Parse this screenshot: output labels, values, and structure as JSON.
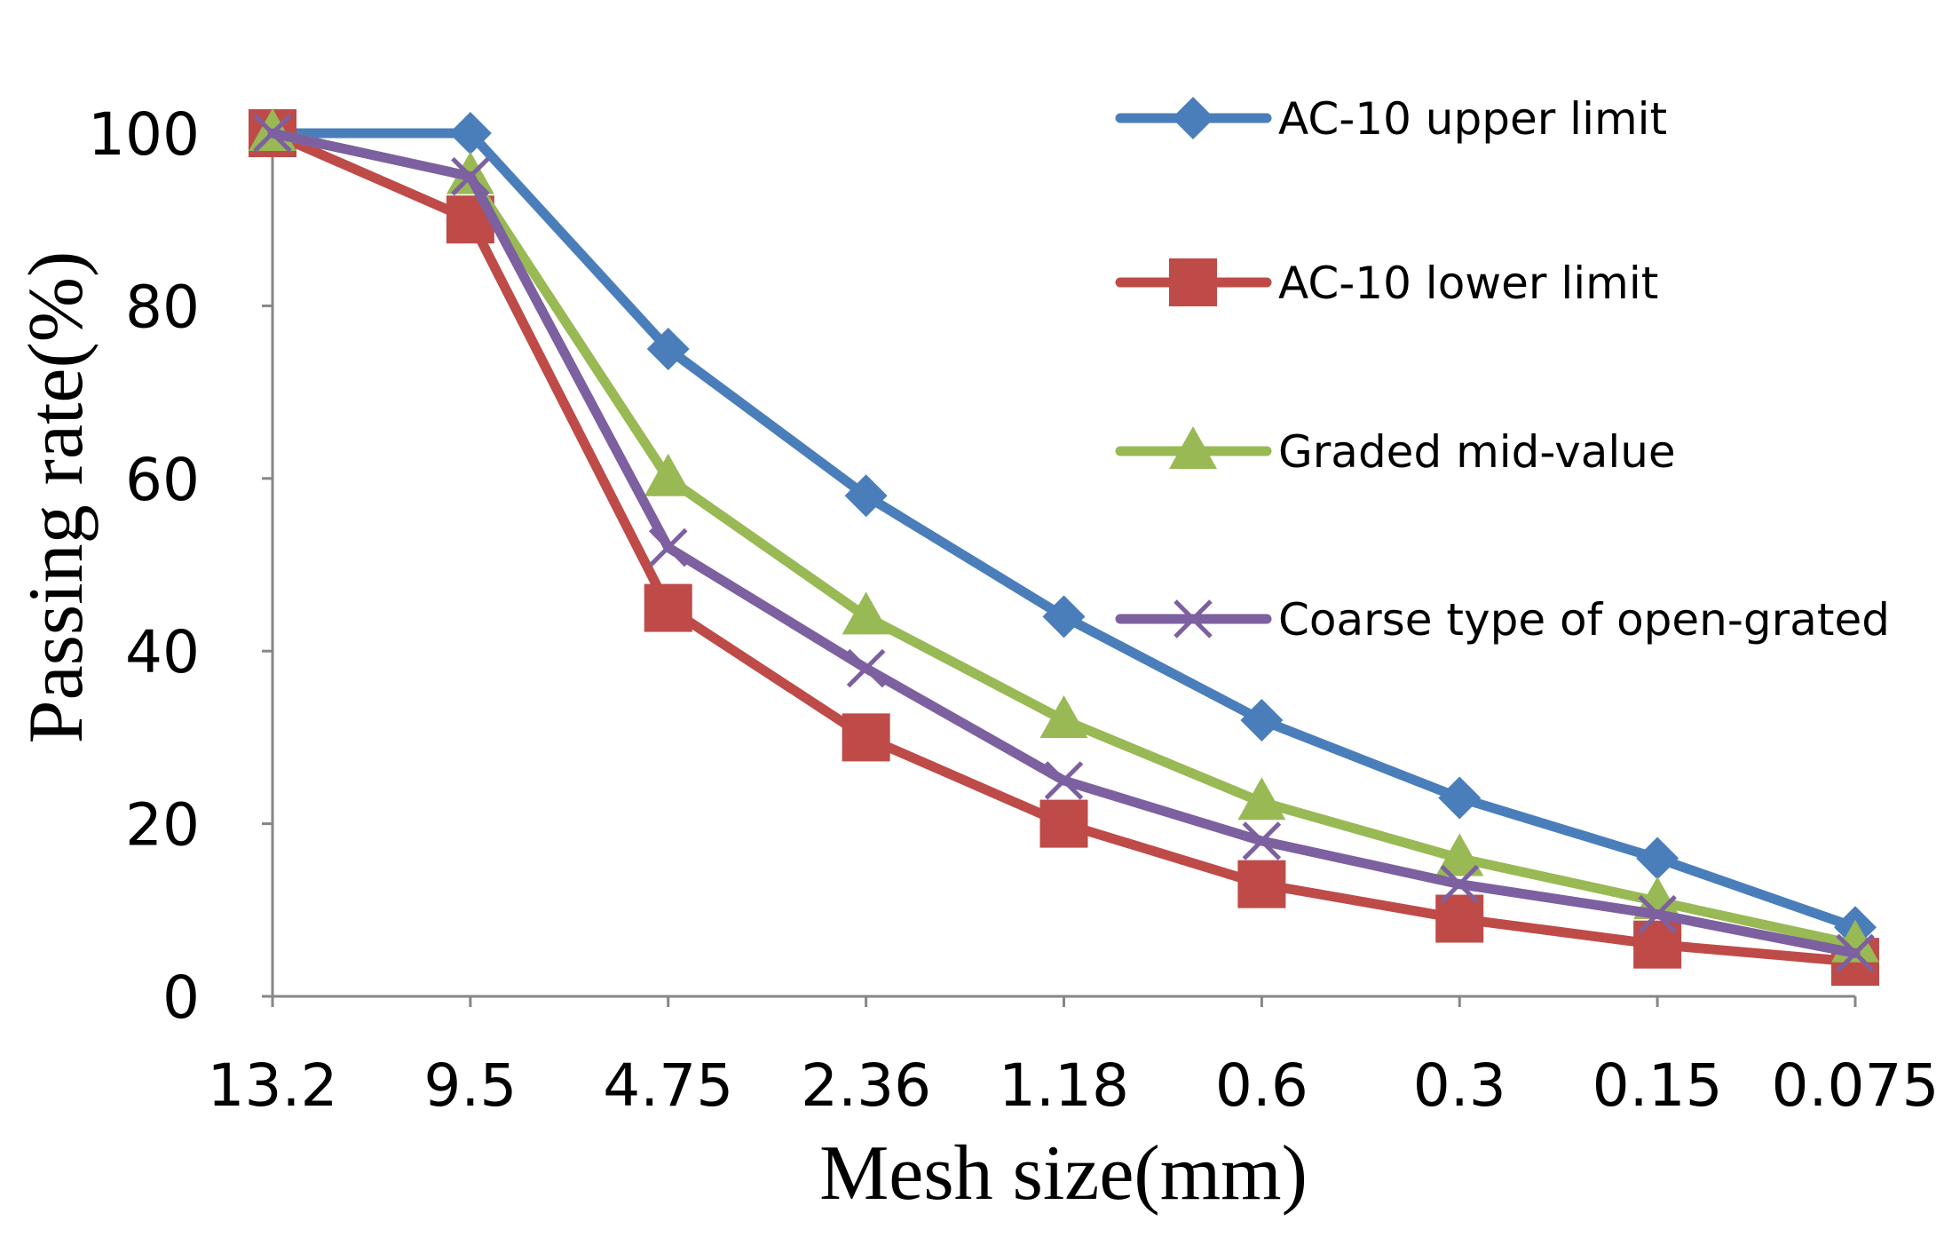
{
  "chart_data": {
    "type": "line",
    "title": "",
    "xlabel": "Mesh size(mm)",
    "ylabel": "Passing rate(%)",
    "categories": [
      "13.2",
      "9.5",
      "4.75",
      "2.36",
      "1.18",
      "0.6",
      "0.3",
      "0.15",
      "0.075"
    ],
    "ylim": [
      0,
      100
    ],
    "yticks": [
      0,
      20,
      40,
      60,
      80,
      100
    ],
    "grid": false,
    "legend_position": "top-right",
    "series": [
      {
        "name": "AC-10 upper limit",
        "marker": "diamond",
        "color": "#4a7ebb",
        "values": [
          100,
          100,
          75,
          58,
          44,
          32,
          23,
          16,
          8
        ]
      },
      {
        "name": "AC-10 lower limit",
        "marker": "square",
        "color": "#be4b48",
        "values": [
          100,
          90,
          45,
          30,
          20,
          13,
          9,
          6,
          4
        ]
      },
      {
        "name": "Graded mid-value",
        "marker": "triangle",
        "color": "#98b954",
        "values": [
          100,
          95,
          60,
          44,
          32,
          22.5,
          16,
          11,
          6
        ]
      },
      {
        "name": "Coarse type of open-grated",
        "marker": "x",
        "color": "#7d60a0",
        "values": [
          100,
          95,
          52,
          38,
          25,
          18,
          13,
          9.5,
          5
        ]
      }
    ]
  }
}
